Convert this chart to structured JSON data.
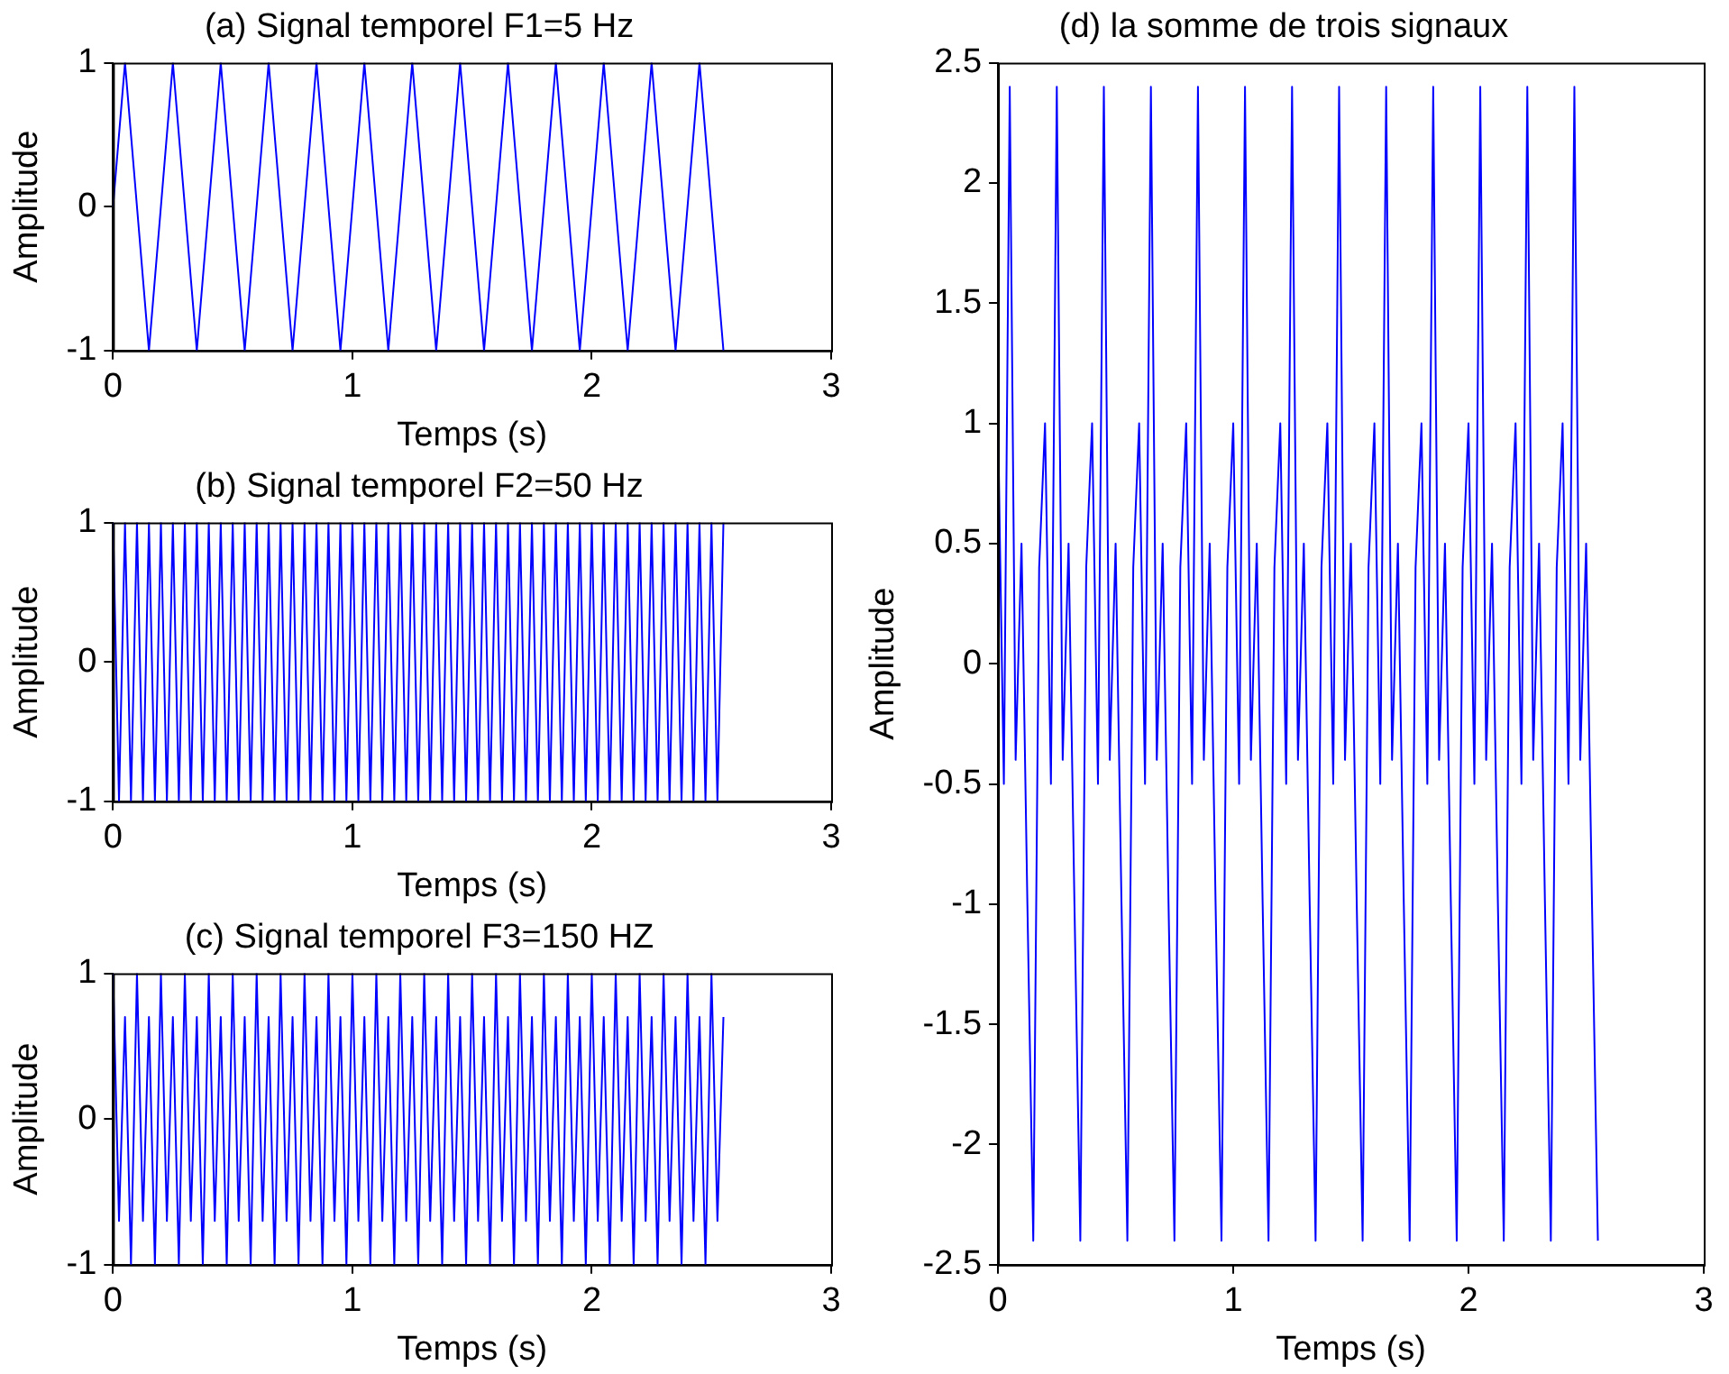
{
  "chart_data": [
    {
      "type": "line",
      "title": "(a) Signal temporel F1=5 Hz",
      "xlabel": "Temps (s)",
      "ylabel": "Amplitude",
      "color": "#0000ff",
      "marker": "none",
      "xlim": [
        0,
        3
      ],
      "ylim": [
        -1,
        1
      ],
      "xticks": [
        0,
        1,
        2,
        3
      ],
      "yticks": [
        -1,
        0,
        1
      ],
      "x": [
        0,
        0.05,
        0.15,
        0.25,
        0.35,
        0.45,
        0.55,
        0.65,
        0.75,
        0.85,
        0.95,
        1.05,
        1.15,
        1.25,
        1.35,
        1.45,
        1.55,
        1.65,
        1.75,
        1.85,
        1.95,
        2.05,
        2.15,
        2.25,
        2.35,
        2.45,
        2.55
      ],
      "values": [
        0,
        1,
        -1,
        1,
        -1,
        1,
        -1,
        1,
        -1,
        1,
        -1,
        1,
        -1,
        1,
        -1,
        1,
        -1,
        1,
        -1,
        1,
        -1,
        1,
        -1,
        1,
        -1,
        1,
        -1
      ]
    },
    {
      "type": "line",
      "title": "(b) Signal temporel F2=50 Hz",
      "xlabel": "Temps (s)",
      "ylabel": "Amplitude",
      "color": "#0000ff",
      "marker": "none",
      "xlim": [
        0,
        3
      ],
      "ylim": [
        -1,
        1
      ],
      "xticks": [
        0,
        1,
        2,
        3
      ],
      "yticks": [
        -1,
        0,
        1
      ],
      "x": [
        0,
        0.025,
        0.05,
        0.075,
        0.1,
        0.125,
        0.15,
        0.175,
        0.2,
        0.225,
        0.25,
        0.275,
        0.3,
        0.325,
        0.35,
        0.375,
        0.4,
        0.425,
        0.45,
        0.475,
        0.5,
        0.525,
        0.55,
        0.575,
        0.6,
        0.625,
        0.65,
        0.675,
        0.7,
        0.725,
        0.75,
        0.775,
        0.8,
        0.825,
        0.85,
        0.875,
        0.9,
        0.925,
        0.95,
        0.975,
        1,
        1.025,
        1.05,
        1.075,
        1.1,
        1.125,
        1.15,
        1.175,
        1.2,
        1.225,
        1.25,
        1.275,
        1.3,
        1.325,
        1.35,
        1.375,
        1.4,
        1.425,
        1.45,
        1.475,
        1.5,
        1.525,
        1.55,
        1.575,
        1.6,
        1.625,
        1.65,
        1.675,
        1.7,
        1.725,
        1.75,
        1.775,
        1.8,
        1.825,
        1.85,
        1.875,
        1.9,
        1.925,
        1.95,
        1.975,
        2,
        2.025,
        2.05,
        2.075,
        2.1,
        2.125,
        2.15,
        2.175,
        2.2,
        2.225,
        2.25,
        2.275,
        2.3,
        2.325,
        2.35,
        2.375,
        2.4,
        2.425,
        2.45,
        2.475,
        2.5,
        2.525,
        2.55
      ],
      "values": [
        1,
        -1,
        1,
        -1,
        1,
        -1,
        1,
        -1,
        1,
        -1,
        1,
        -1,
        1,
        -1,
        1,
        -1,
        1,
        -1,
        1,
        -1,
        1,
        -1,
        1,
        -1,
        1,
        -1,
        1,
        -1,
        1,
        -1,
        1,
        -1,
        1,
        -1,
        1,
        -1,
        1,
        -1,
        1,
        -1,
        1,
        -1,
        1,
        -1,
        1,
        -1,
        1,
        -1,
        1,
        -1,
        1,
        -1,
        1,
        -1,
        1,
        -1,
        1,
        -1,
        1,
        -1,
        1,
        -1,
        1,
        -1,
        1,
        -1,
        1,
        -1,
        1,
        -1,
        1,
        -1,
        1,
        -1,
        1,
        -1,
        1,
        -1,
        1,
        -1,
        1,
        -1,
        1,
        -1,
        1,
        -1,
        1,
        -1,
        1,
        -1,
        1,
        -1,
        1,
        -1,
        1,
        -1,
        1,
        -1,
        1,
        -1,
        1,
        -1,
        1
      ]
    },
    {
      "type": "line",
      "title": "(c) Signal temporel F3=150 HZ",
      "xlabel": "Temps (s)",
      "ylabel": "Amplitude",
      "color": "#0000ff",
      "marker": "none",
      "xlim": [
        0,
        3
      ],
      "ylim": [
        -1,
        1
      ],
      "xticks": [
        0,
        1,
        2,
        3
      ],
      "yticks": [
        -1,
        0,
        1
      ],
      "x": [
        0,
        0.025,
        0.05,
        0.075,
        0.1,
        0.125,
        0.15,
        0.175,
        0.2,
        0.225,
        0.25,
        0.275,
        0.3,
        0.325,
        0.35,
        0.375,
        0.4,
        0.425,
        0.45,
        0.475,
        0.5,
        0.525,
        0.55,
        0.575,
        0.6,
        0.625,
        0.65,
        0.675,
        0.7,
        0.725,
        0.75,
        0.775,
        0.8,
        0.825,
        0.85,
        0.875,
        0.9,
        0.925,
        0.95,
        0.975,
        1,
        1.025,
        1.05,
        1.075,
        1.1,
        1.125,
        1.15,
        1.175,
        1.2,
        1.225,
        1.25,
        1.275,
        1.3,
        1.325,
        1.35,
        1.375,
        1.4,
        1.425,
        1.45,
        1.475,
        1.5,
        1.525,
        1.55,
        1.575,
        1.6,
        1.625,
        1.65,
        1.675,
        1.7,
        1.725,
        1.75,
        1.775,
        1.8,
        1.825,
        1.85,
        1.875,
        1.9,
        1.925,
        1.95,
        1.975,
        2,
        2.025,
        2.05,
        2.075,
        2.1,
        2.125,
        2.15,
        2.175,
        2.2,
        2.225,
        2.25,
        2.275,
        2.3,
        2.325,
        2.35,
        2.375,
        2.4,
        2.425,
        2.45,
        2.475,
        2.5,
        2.525,
        2.55
      ],
      "values": [
        1,
        -0.7,
        0.7,
        -1,
        1,
        -0.7,
        0.7,
        -1,
        1,
        -0.7,
        0.7,
        -1,
        1,
        -0.7,
        0.7,
        -1,
        1,
        -0.7,
        0.7,
        -1,
        1,
        -0.7,
        0.7,
        -1,
        1,
        -0.7,
        0.7,
        -1,
        1,
        -0.7,
        0.7,
        -1,
        1,
        -0.7,
        0.7,
        -1,
        1,
        -0.7,
        0.7,
        -1,
        1,
        -0.7,
        0.7,
        -1,
        1,
        -0.7,
        0.7,
        -1,
        1,
        -0.7,
        0.7,
        -1,
        1,
        -0.7,
        0.7,
        -1,
        1,
        -0.7,
        0.7,
        -1,
        1,
        -0.7,
        0.7,
        -1,
        1,
        -0.7,
        0.7,
        -1,
        1,
        -0.7,
        0.7,
        -1,
        1,
        -0.7,
        0.7,
        -1,
        1,
        -0.7,
        0.7,
        -1,
        1,
        -0.7,
        0.7,
        -1,
        1,
        -0.7,
        0.7,
        -1,
        1,
        -0.7,
        0.7,
        -1,
        1,
        -0.7,
        0.7,
        -1,
        1,
        -0.7,
        0.7,
        -1,
        1,
        -0.7,
        0.7
      ]
    },
    {
      "type": "line",
      "title": "(d) la somme de trois signaux",
      "xlabel": "Temps (s)",
      "ylabel": "Amplitude",
      "color": "#0000ff",
      "marker": "none",
      "xlim": [
        0,
        3
      ],
      "ylim": [
        -2.5,
        2.5
      ],
      "xticks": [
        0,
        1,
        2,
        3
      ],
      "yticks": [
        -2.5,
        -2,
        -1.5,
        -1,
        -0.5,
        0,
        0.5,
        1,
        1.5,
        2,
        2.5
      ],
      "x": [
        0,
        0.025,
        0.05,
        0.075,
        0.1,
        0.125,
        0.15,
        0.175,
        0.2,
        0.225,
        0.25,
        0.275,
        0.3,
        0.325,
        0.35,
        0.375,
        0.4,
        0.425,
        0.45,
        0.475,
        0.5,
        0.525,
        0.55,
        0.575,
        0.6,
        0.625,
        0.65,
        0.675,
        0.7,
        0.725,
        0.75,
        0.775,
        0.8,
        0.825,
        0.85,
        0.875,
        0.9,
        0.925,
        0.95,
        0.975,
        1,
        1.025,
        1.05,
        1.075,
        1.1,
        1.125,
        1.15,
        1.175,
        1.2,
        1.225,
        1.25,
        1.275,
        1.3,
        1.325,
        1.35,
        1.375,
        1.4,
        1.425,
        1.45,
        1.475,
        1.5,
        1.525,
        1.55,
        1.575,
        1.6,
        1.625,
        1.65,
        1.675,
        1.7,
        1.725,
        1.75,
        1.775,
        1.8,
        1.825,
        1.85,
        1.875,
        1.9,
        1.925,
        1.95,
        1.975,
        2,
        2.025,
        2.05,
        2.075,
        2.1,
        2.125,
        2.15,
        2.175,
        2.2,
        2.225,
        2.25,
        2.275,
        2.3,
        2.325,
        2.35,
        2.375,
        2.4,
        2.425,
        2.45,
        2.475,
        2.5,
        2.525,
        2.55
      ],
      "values": [
        1,
        -0.5,
        2.4,
        -0.4,
        0.5,
        -1,
        -2.4,
        0.4,
        1,
        -0.5,
        2.4,
        -0.4,
        0.5,
        -1,
        -2.4,
        0.4,
        1,
        -0.5,
        2.4,
        -0.4,
        0.5,
        -1,
        -2.4,
        0.4,
        1,
        -0.5,
        2.4,
        -0.4,
        0.5,
        -1,
        -2.4,
        0.4,
        1,
        -0.5,
        2.4,
        -0.4,
        0.5,
        -1,
        -2.4,
        0.4,
        1,
        -0.5,
        2.4,
        -0.4,
        0.5,
        -1,
        -2.4,
        0.4,
        1,
        -0.5,
        2.4,
        -0.4,
        0.5,
        -1,
        -2.4,
        0.4,
        1,
        -0.5,
        2.4,
        -0.4,
        0.5,
        -1,
        -2.4,
        0.4,
        1,
        -0.5,
        2.4,
        -0.4,
        0.5,
        -1,
        -2.4,
        0.4,
        1,
        -0.5,
        2.4,
        -0.4,
        0.5,
        -1,
        -2.4,
        0.4,
        1,
        -0.5,
        2.4,
        -0.4,
        0.5,
        -1,
        -2.4,
        0.4,
        1,
        -0.5,
        2.4,
        -0.4,
        0.5,
        -1,
        -2.4,
        0.4,
        1,
        -0.5,
        2.4,
        -0.4,
        0.5,
        -1,
        -2.4
      ]
    }
  ]
}
